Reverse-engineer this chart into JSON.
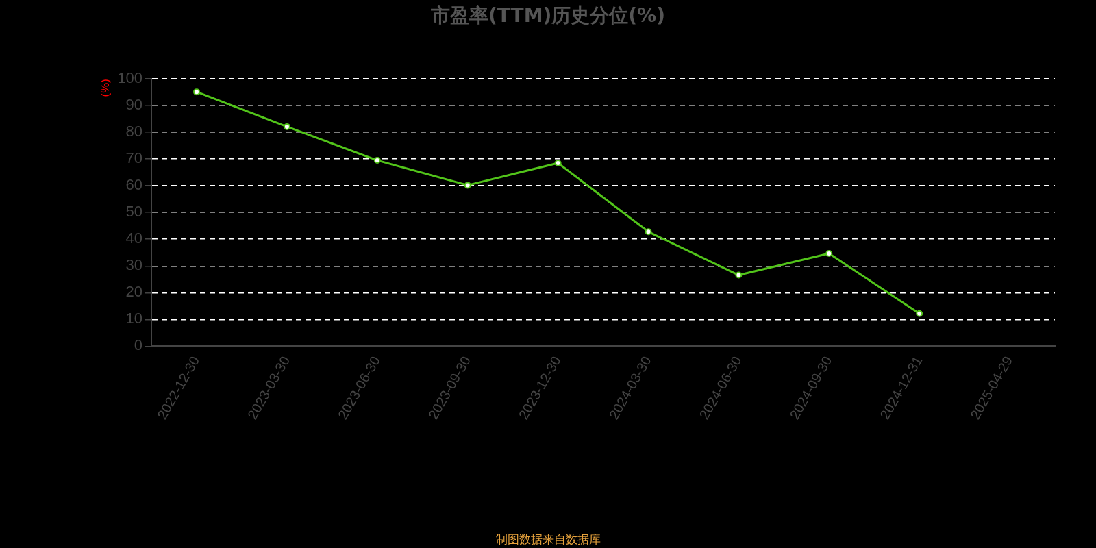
{
  "chart_data": {
    "type": "line",
    "title": "市盈率(TTM)历史分位(%)",
    "ylabel": "(%)",
    "categories": [
      "2022-12-30",
      "2023-03-30",
      "2023-06-30",
      "2023-09-30",
      "2023-12-30",
      "2024-03-30",
      "2024-06-30",
      "2024-09-30",
      "2024-12-31",
      "2025-04-29"
    ],
    "series": [
      {
        "color": "#52c41a",
        "values": [
          95.1,
          82.1,
          69.5,
          60.2,
          68.5,
          42.8,
          26.6,
          34.7,
          12.2,
          null
        ]
      }
    ],
    "ylim": [
      0,
      100
    ],
    "yticks": [
      0,
      10,
      20,
      30,
      40,
      50,
      60,
      70,
      80,
      90,
      100
    ],
    "grid": "y",
    "legend": false,
    "marker": "circle",
    "line_style": "solid",
    "annotations": [
      "制图数据来自数据库"
    ]
  }
}
